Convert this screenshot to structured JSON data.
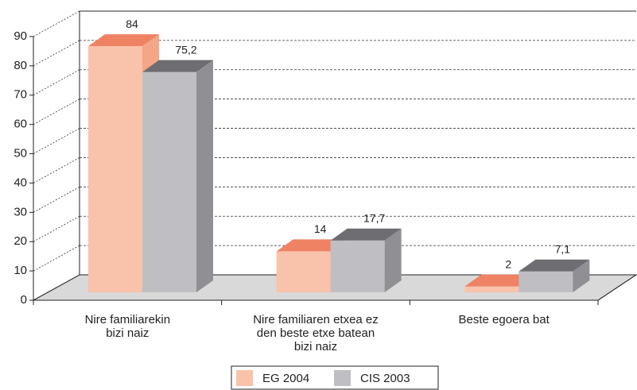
{
  "chart_data": {
    "type": "bar3d",
    "categories": [
      "Nire familiarekin\nbizi naiz",
      "Nire familiaren etxea ez\nden beste etxe batean\nbizi naiz",
      "Beste egoera bat"
    ],
    "series": [
      {
        "name": "EG 2004",
        "color": "#f9c2aa",
        "top_color": "#f08264",
        "side_color": "#f4a686",
        "values": [
          84,
          14,
          2
        ],
        "value_labels": [
          "84",
          "14",
          "2"
        ]
      },
      {
        "name": "CIS 2003",
        "color": "#bfbfc3",
        "top_color": "#6e6e72",
        "side_color": "#909094",
        "values": [
          75.2,
          17.7,
          7.1
        ],
        "value_labels": [
          "75,2",
          "17,7",
          "7,1"
        ]
      }
    ],
    "ylim": [
      0,
      90
    ],
    "yticks": [
      0,
      10,
      20,
      30,
      40,
      50,
      60,
      70,
      80,
      90
    ],
    "grid": true,
    "legend": "bottom"
  }
}
